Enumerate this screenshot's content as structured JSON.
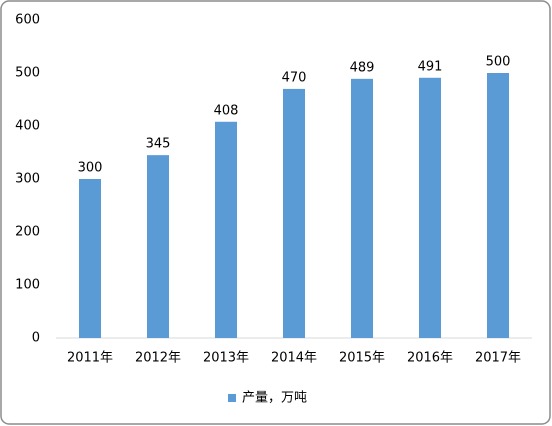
{
  "chart_data": {
    "type": "bar",
    "categories": [
      "2011年",
      "2012年",
      "2013年",
      "2014年",
      "2015年",
      "2016年",
      "2017年"
    ],
    "series": [
      {
        "name": "产量，万吨",
        "color": "#5b9bd5",
        "values": [
          300,
          345,
          408,
          470,
          489,
          491,
          500
        ]
      }
    ],
    "ylim": [
      0,
      600
    ],
    "yticks": [
      0,
      100,
      200,
      300,
      400,
      500,
      600
    ],
    "grid": false,
    "legend": "bottom"
  }
}
